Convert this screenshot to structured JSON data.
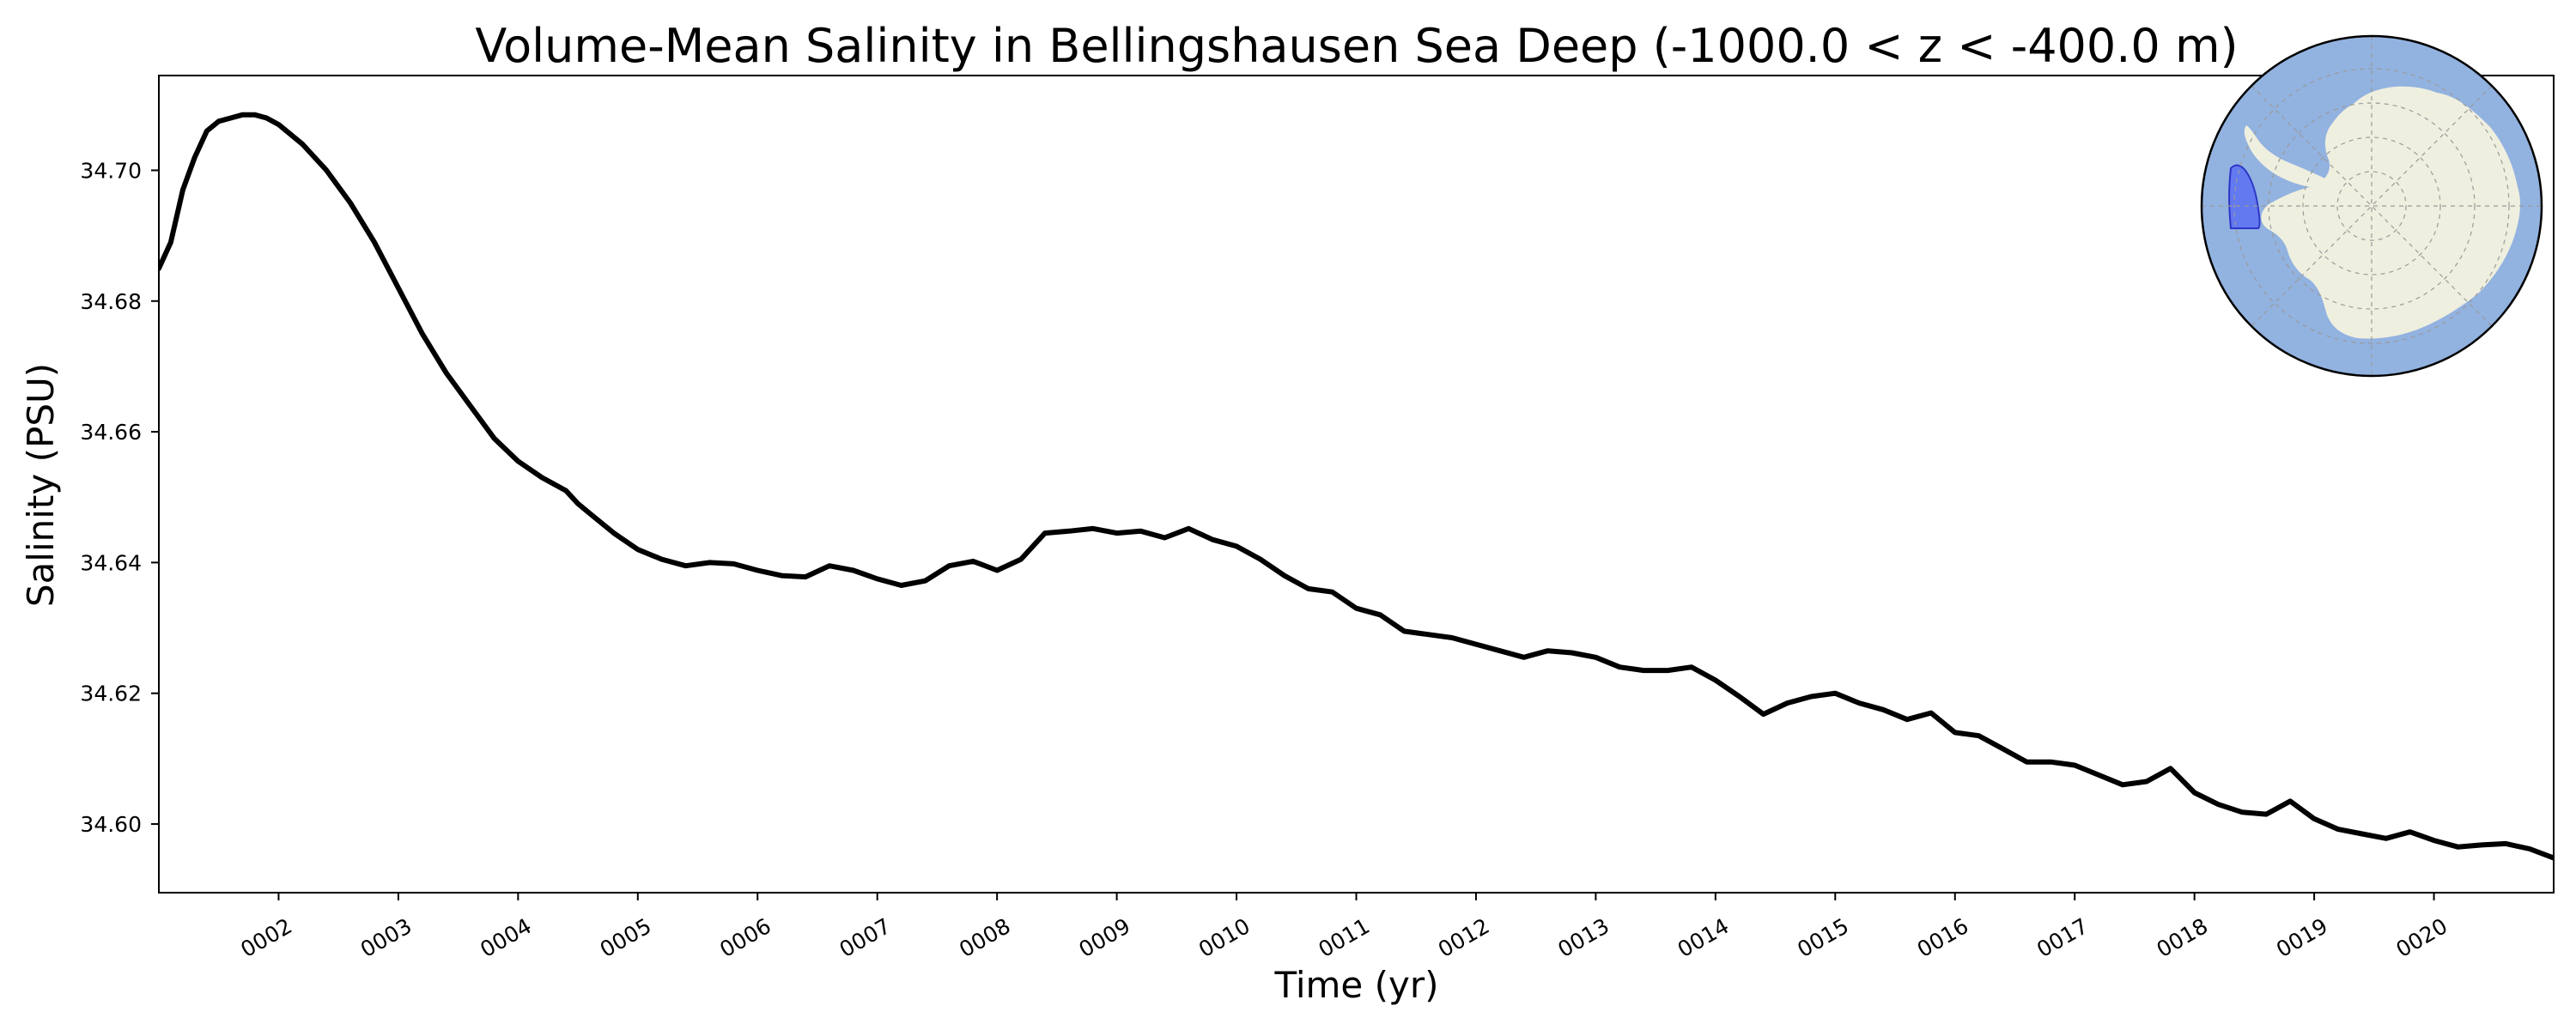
{
  "chart_data": {
    "type": "line",
    "title": "Volume-Mean Salinity in Bellingshausen Sea Deep (-1000.0 < z < -400.0 m)",
    "xlabel": "Time (yr)",
    "ylabel": "Salinity (PSU)",
    "xlim": [
      1.0,
      21.0
    ],
    "ylim": [
      34.5895,
      34.7145
    ],
    "grid": false,
    "x_ticks": [
      2,
      3,
      4,
      5,
      6,
      7,
      8,
      9,
      10,
      11,
      12,
      13,
      14,
      15,
      16,
      17,
      18,
      19,
      20
    ],
    "x_tick_labels": [
      "0002",
      "0003",
      "0004",
      "0005",
      "0006",
      "0007",
      "0008",
      "0009",
      "0010",
      "0011",
      "0012",
      "0013",
      "0014",
      "0015",
      "0016",
      "0017",
      "0018",
      "0019",
      "0020"
    ],
    "y_ticks": [
      34.6,
      34.62,
      34.64,
      34.66,
      34.68,
      34.7
    ],
    "y_tick_labels": [
      "34.60",
      "34.62",
      "34.64",
      "34.66",
      "34.68",
      "34.70"
    ],
    "series": [
      {
        "name": "Salinity",
        "color": "#000000",
        "x": [
          1.0,
          1.1,
          1.2,
          1.3,
          1.4,
          1.5,
          1.6,
          1.7,
          1.8,
          1.9,
          2.0,
          2.2,
          2.4,
          2.6,
          2.8,
          3.0,
          3.2,
          3.4,
          3.6,
          3.8,
          4.0,
          4.2,
          4.4,
          4.5,
          4.6,
          4.8,
          5.0,
          5.2,
          5.4,
          5.6,
          5.8,
          6.0,
          6.2,
          6.4,
          6.6,
          6.8,
          7.0,
          7.2,
          7.4,
          7.6,
          7.8,
          8.0,
          8.2,
          8.4,
          8.6,
          8.8,
          9.0,
          9.2,
          9.4,
          9.6,
          9.8,
          10.0,
          10.2,
          10.4,
          10.6,
          10.8,
          11.0,
          11.2,
          11.4,
          11.6,
          11.8,
          12.0,
          12.2,
          12.4,
          12.6,
          12.8,
          13.0,
          13.2,
          13.4,
          13.6,
          13.8,
          14.0,
          14.2,
          14.4,
          14.6,
          14.8,
          15.0,
          15.2,
          15.4,
          15.6,
          15.8,
          16.0,
          16.2,
          16.4,
          16.6,
          16.8,
          17.0,
          17.2,
          17.4,
          17.6,
          17.8,
          18.0,
          18.2,
          18.4,
          18.6,
          18.8,
          19.0,
          19.2,
          19.4,
          19.6,
          19.8,
          20.0,
          20.2,
          20.4,
          20.6,
          20.8,
          21.0
        ],
        "values": [
          34.685,
          34.689,
          34.697,
          34.702,
          34.706,
          34.7075,
          34.708,
          34.7085,
          34.7085,
          34.708,
          34.707,
          34.704,
          34.7,
          34.695,
          34.689,
          34.682,
          34.675,
          34.669,
          34.664,
          34.659,
          34.6555,
          34.653,
          34.651,
          34.649,
          34.6475,
          34.6445,
          34.642,
          34.6405,
          34.6395,
          34.64,
          34.6398,
          34.6388,
          34.638,
          34.6378,
          34.6395,
          34.6388,
          34.6375,
          34.6365,
          34.6372,
          34.6395,
          34.6402,
          34.6388,
          34.6405,
          34.6445,
          34.6448,
          34.6452,
          34.6445,
          34.6448,
          34.6438,
          34.6452,
          34.6435,
          34.6425,
          34.6405,
          34.638,
          34.636,
          34.6355,
          34.633,
          34.632,
          34.6295,
          34.629,
          34.6285,
          34.6275,
          34.6265,
          34.6255,
          34.6265,
          34.6262,
          34.6255,
          34.624,
          34.6235,
          34.6235,
          34.624,
          34.622,
          34.6195,
          34.6168,
          34.6185,
          34.6195,
          34.62,
          34.6185,
          34.6175,
          34.616,
          34.617,
          34.614,
          34.6135,
          34.6115,
          34.6095,
          34.6095,
          34.609,
          34.6075,
          34.606,
          34.6065,
          34.6085,
          34.6048,
          34.603,
          34.6018,
          34.6015,
          34.6035,
          34.6008,
          34.5992,
          34.5985,
          34.5978,
          34.5988,
          34.5975,
          34.5965,
          34.5968,
          34.597,
          34.5962,
          34.5948
        ]
      }
    ]
  },
  "inset_map": {
    "region_name": "Bellingshausen Sea Deep",
    "colors": {
      "ocean": "#92b2e0",
      "land": "#efefdf",
      "region_fill": "#5a6ff2",
      "region_edge": "#2d35c7",
      "graticule": "#9a9a9a"
    }
  }
}
